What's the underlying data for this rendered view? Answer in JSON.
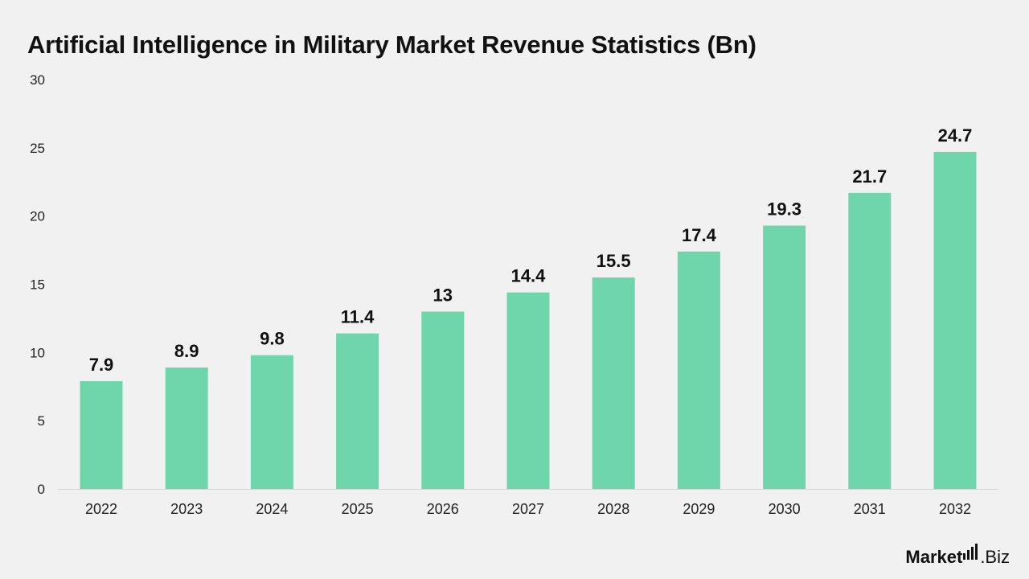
{
  "chart_data": {
    "type": "bar",
    "title": "Artificial Intelligence in Military Market Revenue Statistics (Bn)",
    "xlabel": "",
    "ylabel": "",
    "categories": [
      "2022",
      "2023",
      "2024",
      "2025",
      "2026",
      "2027",
      "2028",
      "2029",
      "2030",
      "2031",
      "2032"
    ],
    "values": [
      7.9,
      8.9,
      9.8,
      11.4,
      13,
      14.4,
      15.5,
      17.4,
      19.3,
      21.7,
      24.7
    ],
    "value_labels": [
      "7.9",
      "8.9",
      "9.8",
      "11.4",
      "13",
      "14.4",
      "15.5",
      "17.4",
      "19.3",
      "21.7",
      "24.7"
    ],
    "yticks": [
      "0",
      "5",
      "10",
      "15",
      "20",
      "25",
      "30"
    ],
    "ylim": [
      0,
      30
    ],
    "grid": false,
    "legend": "none",
    "bar_color": "#6fd6ab"
  },
  "branding": {
    "logo_name": "Market",
    "logo_suffix": ".Biz",
    "logo_icon": "bar-chart-icon"
  }
}
